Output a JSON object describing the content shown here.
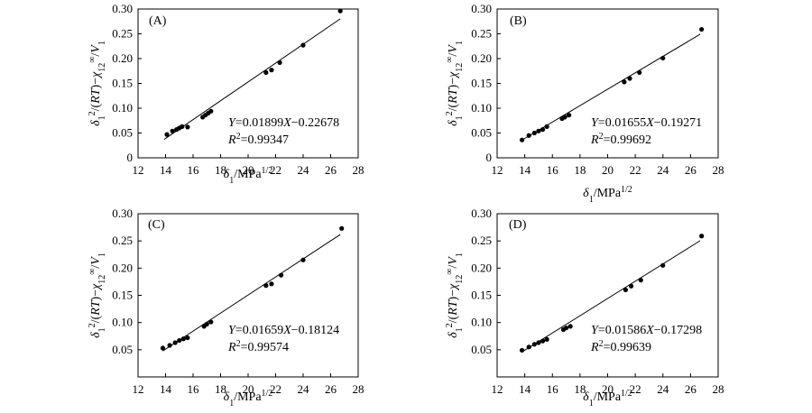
{
  "chart_data": [
    {
      "type": "scatter",
      "panel_label": "(A)",
      "xlabel": "δ1/MPa1/2",
      "ylabel": "δ1²/(RT)−χ12∞/V1",
      "xlim": [
        12,
        28
      ],
      "ylim": [
        0,
        0.3
      ],
      "xticks": [
        "12",
        "14",
        "16",
        "18",
        "20",
        "22",
        "24",
        "26",
        "28"
      ],
      "yticks": [
        "0",
        "0.05",
        "0.10",
        "0.15",
        "0.20",
        "0.25",
        "0.30"
      ],
      "equation": "Y=0.01899X−0.22678",
      "r2": "R²=0.99347",
      "fit": {
        "slope": 0.01899,
        "intercept": -0.22678,
        "x_range": [
          13.9,
          26.7
        ]
      },
      "points": [
        {
          "x": 14.1,
          "y": 0.047
        },
        {
          "x": 14.5,
          "y": 0.054
        },
        {
          "x": 14.8,
          "y": 0.057
        },
        {
          "x": 15.0,
          "y": 0.06
        },
        {
          "x": 15.2,
          "y": 0.063
        },
        {
          "x": 15.6,
          "y": 0.062
        },
        {
          "x": 16.7,
          "y": 0.082
        },
        {
          "x": 16.9,
          "y": 0.086
        },
        {
          "x": 17.1,
          "y": 0.09
        },
        {
          "x": 17.3,
          "y": 0.094
        },
        {
          "x": 21.3,
          "y": 0.172
        },
        {
          "x": 21.7,
          "y": 0.177
        },
        {
          "x": 22.3,
          "y": 0.192
        },
        {
          "x": 24.0,
          "y": 0.227
        },
        {
          "x": 26.7,
          "y": 0.296
        }
      ]
    },
    {
      "type": "scatter",
      "panel_label": "(B)",
      "xlabel": "δ1/MPa1/2",
      "ylabel": "δ1²/(RT)−χ12∞/V1",
      "xlim": [
        12,
        28
      ],
      "ylim": [
        0,
        0.3
      ],
      "xticks": [
        "12",
        "14",
        "16",
        "18",
        "20",
        "22",
        "24",
        "26",
        "28"
      ],
      "yticks": [
        "0",
        "0.05",
        "0.10",
        "0.15",
        "0.20",
        "0.25",
        "0.30"
      ],
      "equation": "Y=0.01655X−0.19271",
      "r2": "R²=0.99692",
      "fit": {
        "slope": 0.01655,
        "intercept": -0.19271,
        "x_range": [
          13.8,
          26.7
        ]
      },
      "points": [
        {
          "x": 13.8,
          "y": 0.036
        },
        {
          "x": 14.3,
          "y": 0.045
        },
        {
          "x": 14.7,
          "y": 0.05
        },
        {
          "x": 15.0,
          "y": 0.054
        },
        {
          "x": 15.3,
          "y": 0.057
        },
        {
          "x": 15.6,
          "y": 0.063
        },
        {
          "x": 16.7,
          "y": 0.079
        },
        {
          "x": 16.9,
          "y": 0.082
        },
        {
          "x": 17.2,
          "y": 0.086
        },
        {
          "x": 21.2,
          "y": 0.153
        },
        {
          "x": 21.6,
          "y": 0.16
        },
        {
          "x": 22.3,
          "y": 0.172
        },
        {
          "x": 24.0,
          "y": 0.201
        },
        {
          "x": 26.8,
          "y": 0.259
        }
      ]
    },
    {
      "type": "scatter",
      "panel_label": "(C)",
      "xlabel": "δ1/MPa1/2",
      "ylabel": "δ1²/(RT)−χ12∞/V1",
      "xlim": [
        12,
        28
      ],
      "ylim": [
        0,
        0.3
      ],
      "xticks": [
        "12",
        "14",
        "16",
        "18",
        "20",
        "22",
        "24",
        "26",
        "28"
      ],
      "yticks": [
        "0.05",
        "0.10",
        "0.15",
        "0.20",
        "0.25",
        "0.30"
      ],
      "equation": "Y=0.01659X−0.18124",
      "r2": "R²=0.99574",
      "fit": {
        "slope": 0.01659,
        "intercept": -0.18124,
        "x_range": [
          13.8,
          26.7
        ]
      },
      "points": [
        {
          "x": 13.8,
          "y": 0.053
        },
        {
          "x": 14.3,
          "y": 0.058
        },
        {
          "x": 14.7,
          "y": 0.063
        },
        {
          "x": 15.0,
          "y": 0.067
        },
        {
          "x": 15.3,
          "y": 0.07
        },
        {
          "x": 15.6,
          "y": 0.072
        },
        {
          "x": 16.8,
          "y": 0.093
        },
        {
          "x": 17.0,
          "y": 0.097
        },
        {
          "x": 17.3,
          "y": 0.101
        },
        {
          "x": 21.3,
          "y": 0.168
        },
        {
          "x": 21.7,
          "y": 0.171
        },
        {
          "x": 22.4,
          "y": 0.187
        },
        {
          "x": 24.0,
          "y": 0.215
        },
        {
          "x": 26.8,
          "y": 0.273
        }
      ]
    },
    {
      "type": "scatter",
      "panel_label": "(D)",
      "xlabel": "δ1/MPa1/2",
      "ylabel": "δ1²/(RT)−χ12∞/V1",
      "xlim": [
        12,
        28
      ],
      "ylim": [
        0,
        0.3
      ],
      "xticks": [
        "12",
        "14",
        "16",
        "18",
        "20",
        "22",
        "24",
        "26",
        "28"
      ],
      "yticks": [
        "0.05",
        "0.10",
        "0.15",
        "0.20",
        "0.25",
        "0.30"
      ],
      "equation": "Y=0.01586X−0.17298",
      "r2": "R²=0.99639",
      "fit": {
        "slope": 0.01586,
        "intercept": -0.17298,
        "x_range": [
          13.8,
          26.7
        ]
      },
      "points": [
        {
          "x": 13.8,
          "y": 0.049
        },
        {
          "x": 14.3,
          "y": 0.055
        },
        {
          "x": 14.7,
          "y": 0.06
        },
        {
          "x": 15.0,
          "y": 0.063
        },
        {
          "x": 15.3,
          "y": 0.066
        },
        {
          "x": 15.6,
          "y": 0.069
        },
        {
          "x": 16.8,
          "y": 0.087
        },
        {
          "x": 17.0,
          "y": 0.09
        },
        {
          "x": 17.3,
          "y": 0.093
        },
        {
          "x": 21.3,
          "y": 0.16
        },
        {
          "x": 21.7,
          "y": 0.167
        },
        {
          "x": 22.4,
          "y": 0.178
        },
        {
          "x": 24.0,
          "y": 0.205
        },
        {
          "x": 26.8,
          "y": 0.259
        }
      ]
    }
  ]
}
